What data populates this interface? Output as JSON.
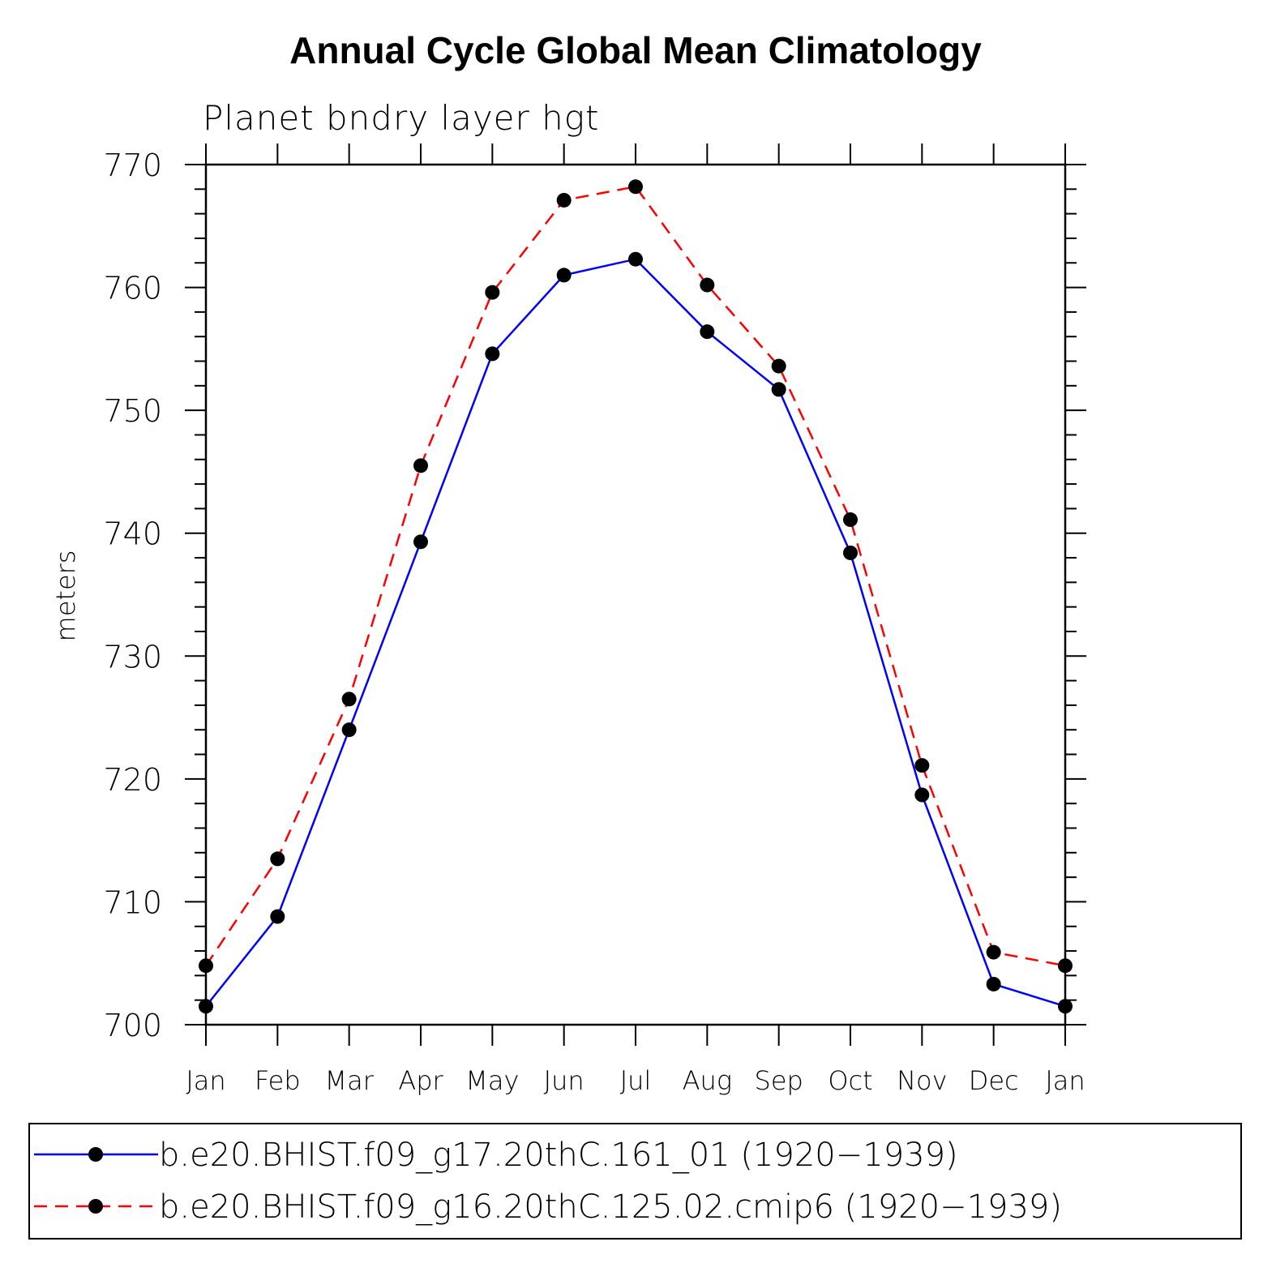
{
  "chart_data": {
    "type": "line",
    "title": "Annual Cycle Global Mean Climatology",
    "subtitle": "Planet bndry layer hgt",
    "xlabel": "",
    "ylabel": "meters",
    "categories": [
      "Jan",
      "Feb",
      "Mar",
      "Apr",
      "May",
      "Jun",
      "Jul",
      "Aug",
      "Sep",
      "Oct",
      "Nov",
      "Dec",
      "Jan"
    ],
    "ylim": [
      700,
      770
    ],
    "yticks": [
      700,
      710,
      720,
      730,
      740,
      750,
      760,
      770
    ],
    "y_minor_step": 2,
    "grid": false,
    "legend_placement": "bottom",
    "series": [
      {
        "name": "b.e20.BHIST.f09_g17.20thC.161_01 (1920−1939)",
        "color": "#0000ff",
        "dash": "solid",
        "marker": "filled-circle",
        "values": [
          701.5,
          708.8,
          724.0,
          739.3,
          754.6,
          761.0,
          762.3,
          756.4,
          751.7,
          738.4,
          718.7,
          703.3,
          701.5
        ]
      },
      {
        "name": "b.e20.BHIST.f09_g16.20thC.125.02.cmip6 (1920−1939)",
        "color": "#ff0000",
        "dash": "dashed",
        "marker": "filled-circle",
        "values": [
          704.8,
          713.5,
          726.5,
          745.5,
          759.6,
          767.1,
          768.2,
          760.2,
          753.6,
          741.1,
          721.1,
          705.9,
          704.8
        ]
      }
    ]
  }
}
